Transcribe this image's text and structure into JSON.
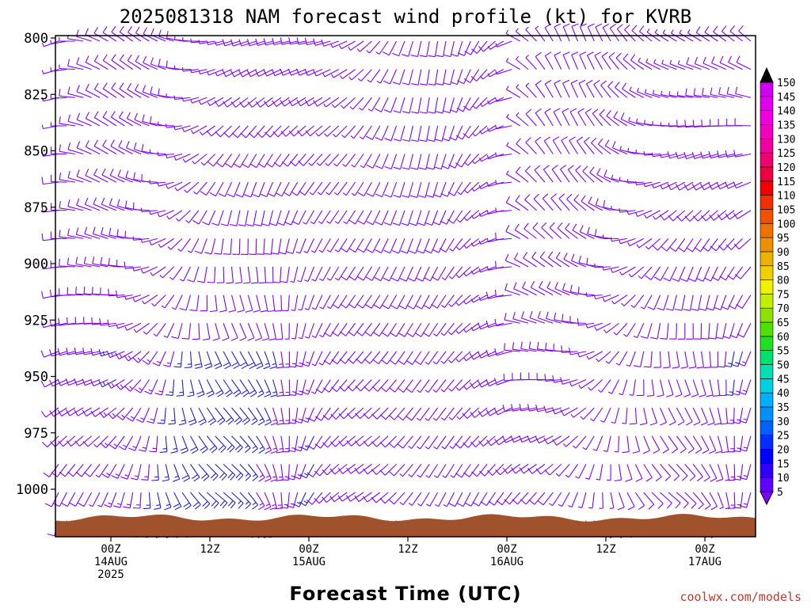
{
  "chart_data": {
    "type": "wind-barb-profile",
    "title": "2025081318 NAM forecast wind profile (kt) for KVRB",
    "xlabel": "Forecast Time (UTC)",
    "ylabel": "",
    "ylim": [
      1020,
      800
    ],
    "ylevels": [
      800,
      825,
      850,
      875,
      900,
      925,
      950,
      975,
      1000
    ],
    "xticks": [
      {
        "top": "00Z",
        "mid": "14AUG",
        "bottom": "2025"
      },
      {
        "top": "12Z",
        "mid": "",
        "bottom": ""
      },
      {
        "top": "00Z",
        "mid": "15AUG",
        "bottom": ""
      },
      {
        "top": "12Z",
        "mid": "",
        "bottom": ""
      },
      {
        "top": "00Z",
        "mid": "16AUG",
        "bottom": ""
      },
      {
        "top": "12Z",
        "mid": "",
        "bottom": ""
      },
      {
        "top": "00Z",
        "mid": "17AUG",
        "bottom": ""
      }
    ],
    "time_range_hours": [
      0,
      84
    ],
    "forecast_steps": 85,
    "barb_levels_hpa": [
      800,
      812.5,
      825,
      837.5,
      850,
      862.5,
      875,
      887.5,
      900,
      912.5,
      925,
      937.5,
      950,
      962.5,
      975,
      987.5,
      1000,
      1012.5
    ],
    "colorbar": {
      "unit": "kt",
      "levels": [
        5,
        10,
        15,
        20,
        25,
        30,
        35,
        40,
        45,
        50,
        55,
        60,
        65,
        70,
        75,
        80,
        85,
        90,
        95,
        100,
        105,
        110,
        115,
        120,
        125,
        130,
        135,
        140,
        145,
        150
      ],
      "colors": [
        "#7f00ff",
        "#6000ff",
        "#3000ff",
        "#0000ff",
        "#0030ff",
        "#0060ff",
        "#0090ff",
        "#00b0ff",
        "#00d0e0",
        "#00e0b0",
        "#00e070",
        "#20e020",
        "#50e000",
        "#90e000",
        "#c0f000",
        "#f0f000",
        "#f0d000",
        "#f0b000",
        "#f09000",
        "#f07000",
        "#f05000",
        "#f03000",
        "#f00000",
        "#f00040",
        "#f00070",
        "#f000a0",
        "#f000c0",
        "#f000e0",
        "#e000f0",
        "#d000f0"
      ]
    },
    "terrain_color": "#a0522d",
    "barb_color_light": "#8000ff",
    "barb_color_strong": "#2020d0",
    "credit": "coolwx.com/models"
  }
}
